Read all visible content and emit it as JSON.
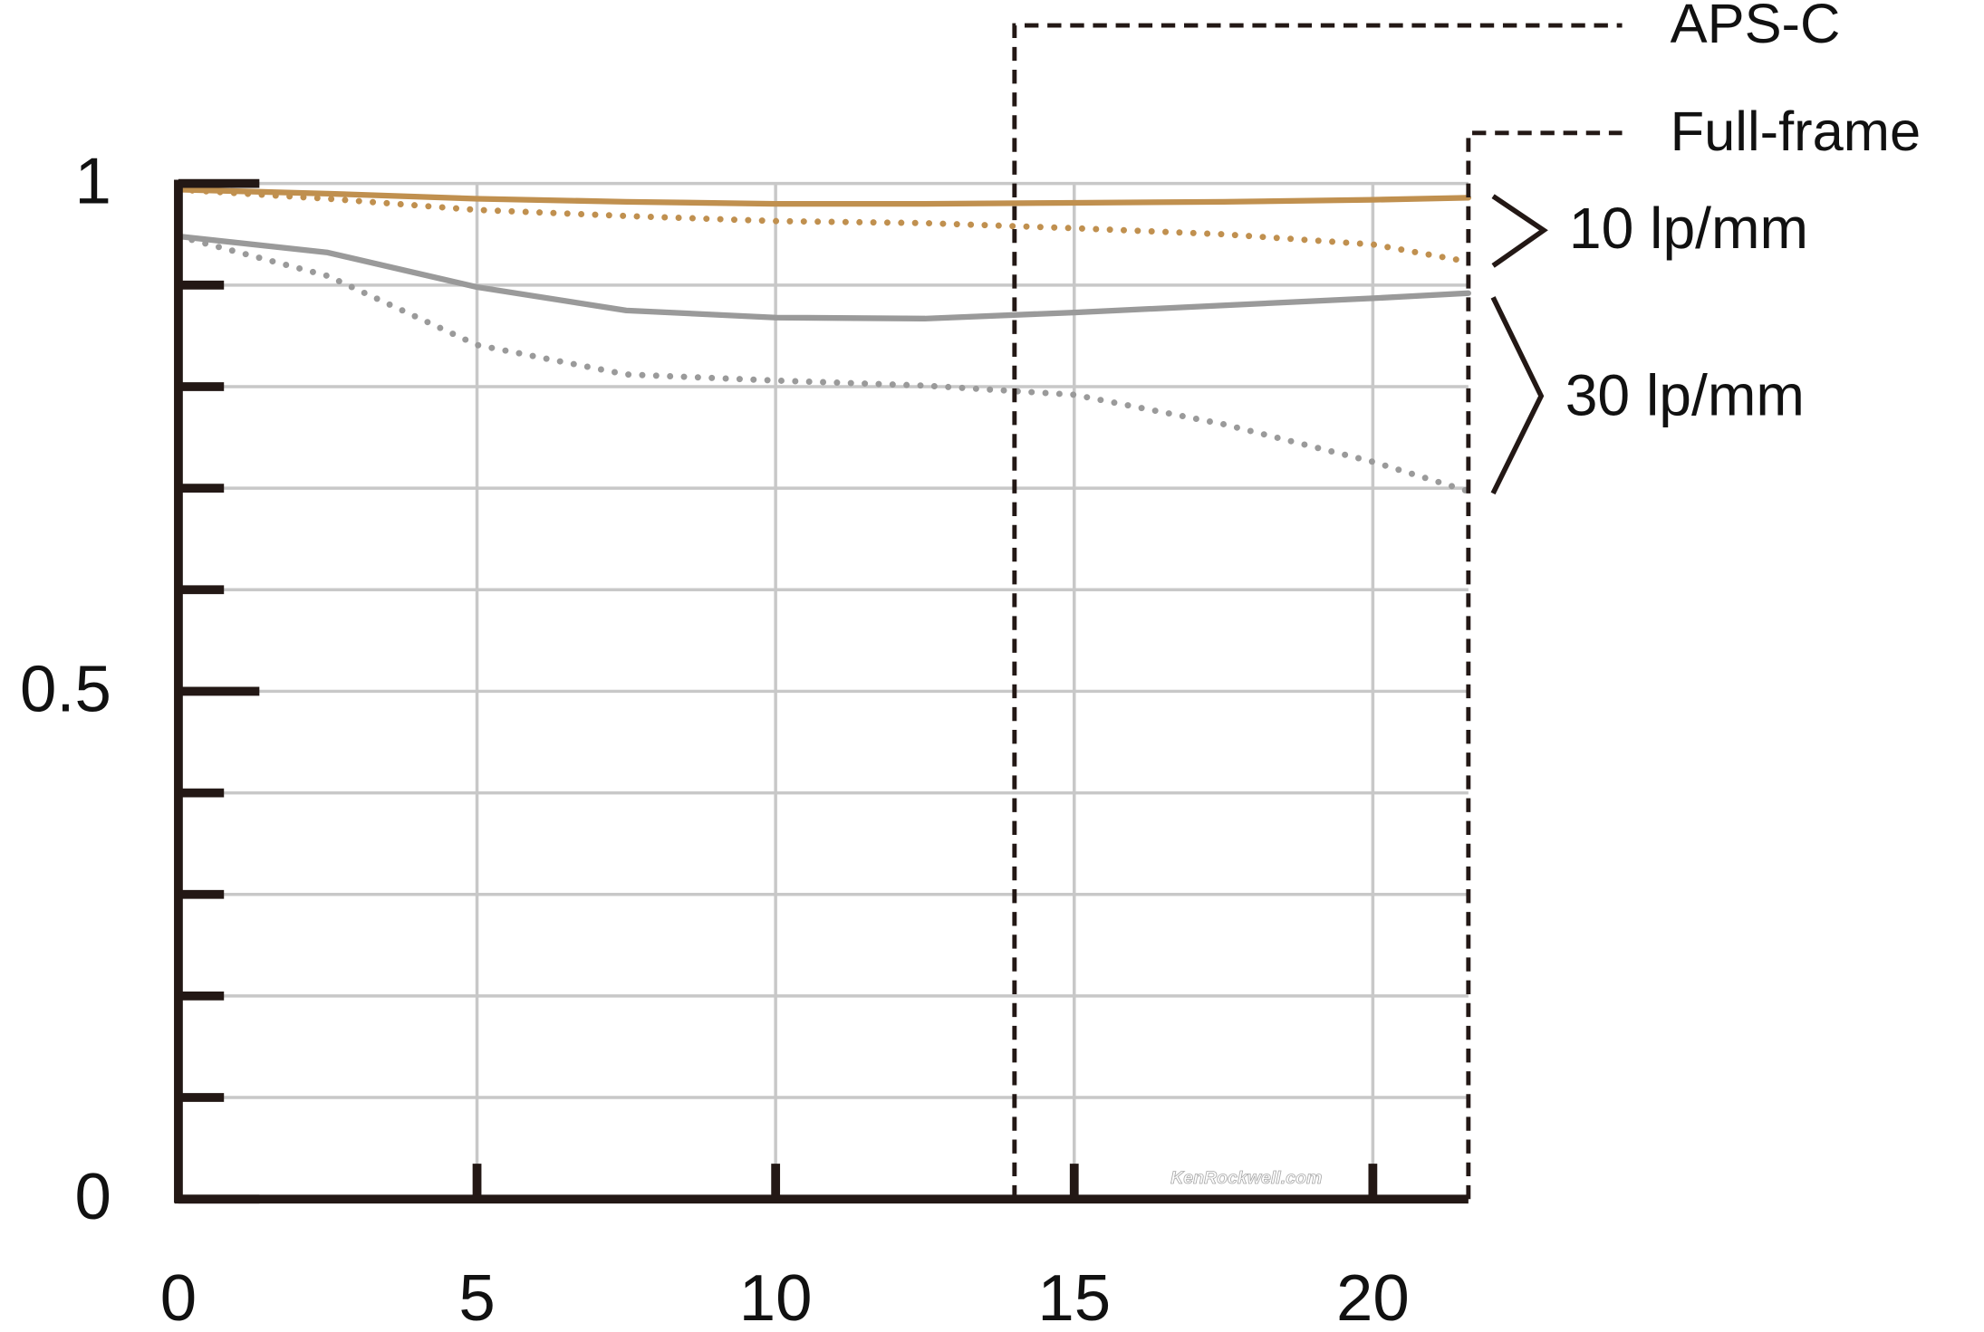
{
  "chart_data": {
    "type": "line",
    "x": [
      0,
      2.5,
      5,
      7.5,
      10,
      12.5,
      15,
      17.5,
      20,
      21.6
    ],
    "series": [
      {
        "color": "#c0904f",
        "style": "solid",
        "values": [
          0.994,
          0.99,
          0.985,
          0.982,
          0.98,
          0.98,
          0.981,
          0.982,
          0.984,
          0.986
        ]
      },
      {
        "color": "#c0904f",
        "style": "dotted",
        "values": [
          0.994,
          0.985,
          0.974,
          0.968,
          0.963,
          0.961,
          0.956,
          0.95,
          0.94,
          0.923
        ]
      },
      {
        "color": "#9a9a9a",
        "style": "solid",
        "values": [
          0.948,
          0.932,
          0.898,
          0.875,
          0.868,
          0.867,
          0.873,
          0.88,
          0.887,
          0.892
        ]
      },
      {
        "color": "#9a9a9a",
        "style": "dotted",
        "values": [
          0.948,
          0.909,
          0.841,
          0.812,
          0.806,
          0.801,
          0.792,
          0.763,
          0.726,
          0.697
        ]
      }
    ],
    "bracket_labels": [
      "10 lp/mm",
      "30 lp/mm"
    ],
    "markers": [
      {
        "label": "APS-C",
        "x": 14
      },
      {
        "label": "Full-frame",
        "x": 21.6
      }
    ],
    "xlim": [
      0,
      21.6
    ],
    "xticks": [
      0,
      5,
      10,
      15,
      20
    ],
    "ylim": [
      0,
      1
    ],
    "yticks": [
      0,
      0.5,
      1
    ],
    "yminor_ticks": [
      0.1,
      0.2,
      0.3,
      0.4,
      0.6,
      0.7,
      0.8,
      0.9
    ],
    "grid": true,
    "watermark": "KenRockwell.com"
  }
}
